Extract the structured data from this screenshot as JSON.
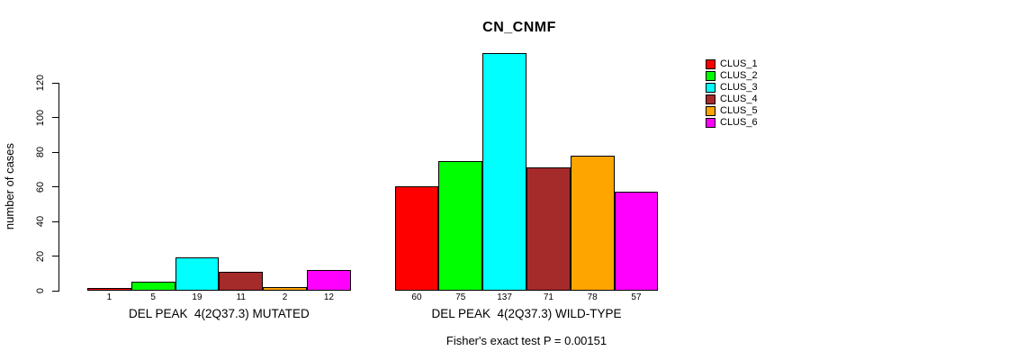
{
  "chart_data": {
    "type": "bar",
    "title": "CN_CNMF",
    "ylabel": "number of cases",
    "yticks": [
      0,
      20,
      40,
      60,
      80,
      100,
      120
    ],
    "ylim": [
      0,
      140
    ],
    "grid": false,
    "legend_position": "right",
    "bar_value_labels": true,
    "categories": [
      "DEL PEAK  4(2Q37.3) MUTATED",
      "DEL PEAK  4(2Q37.3) WILD-TYPE"
    ],
    "series": [
      {
        "name": "CLUS_1",
        "color": "#FF0000",
        "values": [
          1,
          60
        ]
      },
      {
        "name": "CLUS_2",
        "color": "#00FF00",
        "values": [
          5,
          75
        ]
      },
      {
        "name": "CLUS_3",
        "color": "#00FFFF",
        "values": [
          19,
          137
        ]
      },
      {
        "name": "CLUS_4",
        "color": "#A52A2A",
        "values": [
          11,
          71
        ]
      },
      {
        "name": "CLUS_5",
        "color": "#FFA500",
        "values": [
          2,
          78
        ]
      },
      {
        "name": "CLUS_6",
        "color": "#FF00FF",
        "values": [
          12,
          57
        ]
      }
    ],
    "annotation": "Fisher's exact test P = 0.00151"
  }
}
